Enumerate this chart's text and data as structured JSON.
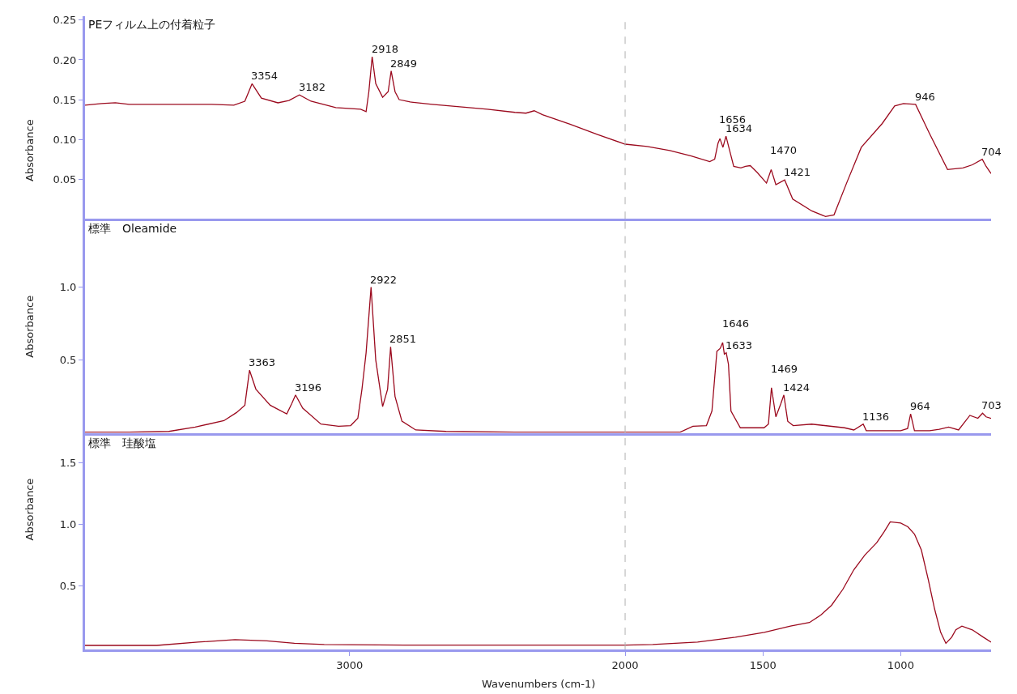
{
  "chart_data": [
    {
      "type": "line",
      "title": "PEフィルム上の付着粒子",
      "ylabel": "Absorbance",
      "xlim": [
        3960,
        672
      ],
      "ylim": [
        0.0,
        0.255
      ],
      "yticks": [
        0.05,
        {
          "value": 0.1,
          "label": "0.10"
        },
        0.15,
        {
          "value": 0.2,
          "label": "0.20"
        },
        0.25
      ],
      "tick_labels": "y",
      "ref_lines": [
        {
          "axis": "x",
          "value": 2000,
          "color": "#b0b0b0",
          "line_style": "dashed"
        }
      ],
      "series": [
        {
          "color": "#9b0a1e",
          "x": [
            3960,
            3900,
            3850,
            3800,
            3700,
            3600,
            3500,
            3420,
            3380,
            3354,
            3320,
            3260,
            3220,
            3182,
            3140,
            3050,
            2960,
            2940,
            2930,
            2918,
            2905,
            2880,
            2860,
            2849,
            2835,
            2820,
            2780,
            2700,
            2600,
            2500,
            2400,
            2360,
            2330,
            2300,
            2200,
            2100,
            2000,
            1920,
            1838,
            1760,
            1693,
            1675,
            1663,
            1656,
            1645,
            1634,
            1620,
            1606,
            1580,
            1563,
            1546,
            1520,
            1487,
            1470,
            1453,
            1421,
            1392,
            1323,
            1273,
            1242,
            1194,
            1143,
            1067,
            1022,
            990,
            946,
            895,
            830,
            774,
            740,
            704,
            690,
            672
          ],
          "values": [
            0.143,
            0.145,
            0.146,
            0.144,
            0.144,
            0.144,
            0.144,
            0.143,
            0.148,
            0.17,
            0.152,
            0.146,
            0.149,
            0.156,
            0.148,
            0.14,
            0.138,
            0.135,
            0.16,
            0.204,
            0.17,
            0.153,
            0.16,
            0.186,
            0.16,
            0.15,
            0.147,
            0.144,
            0.141,
            0.138,
            0.134,
            0.133,
            0.136,
            0.131,
            0.119,
            0.106,
            0.094,
            0.091,
            0.086,
            0.079,
            0.072,
            0.075,
            0.095,
            0.101,
            0.09,
            0.104,
            0.085,
            0.066,
            0.064,
            0.066,
            0.067,
            0.058,
            0.045,
            0.062,
            0.043,
            0.049,
            0.025,
            0.01,
            0.003,
            0.005,
            0.047,
            0.09,
            0.12,
            0.142,
            0.145,
            0.144,
            0.107,
            0.062,
            0.064,
            0.068,
            0.075,
            0.066,
            0.057
          ]
        }
      ],
      "annotations": [
        {
          "text": "3354",
          "x": 3354,
          "y": 0.17
        },
        {
          "text": "3182",
          "x": 3182,
          "y": 0.156
        },
        {
          "text": "2918",
          "x": 2918,
          "y": 0.204
        },
        {
          "text": "2849",
          "x": 2849,
          "y": 0.186
        },
        {
          "text": "1656",
          "x": 1656,
          "y": 0.101
        },
        {
          "text": "1634",
          "x": 1634,
          "y": 0.104
        },
        {
          "text": "1470",
          "x": 1470,
          "y": 0.062
        },
        {
          "text": "1421",
          "x": 1421,
          "y": 0.049
        },
        {
          "text": "946",
          "x": 946,
          "y": 0.144
        },
        {
          "text": "704",
          "x": 704,
          "y": 0.075
        }
      ]
    },
    {
      "type": "line",
      "title": "標準　Oleamide",
      "ylabel": "Absorbance",
      "xlim": [
        3960,
        672
      ],
      "ylim": [
        0.0,
        1.46
      ],
      "yticks": [
        0.5,
        {
          "value": 1.0,
          "label": "1.0"
        }
      ],
      "tick_labels": "y",
      "ref_lines": [
        {
          "axis": "x",
          "value": 2000,
          "color": "#b0b0b0",
          "line_style": "dashed"
        }
      ],
      "series": [
        {
          "color": "#9b0a1e",
          "x": [
            3960,
            3800,
            3656,
            3560,
            3456,
            3410,
            3380,
            3363,
            3340,
            3288,
            3228,
            3210,
            3196,
            3170,
            3104,
            3040,
            2996,
            2970,
            2955,
            2940,
            2922,
            2905,
            2880,
            2862,
            2851,
            2835,
            2810,
            2760,
            2650,
            2400,
            2000,
            1800,
            1754,
            1705,
            1685,
            1667,
            1655,
            1646,
            1640,
            1633,
            1625,
            1616,
            1582,
            1496,
            1480,
            1469,
            1453,
            1435,
            1424,
            1410,
            1390,
            1323,
            1204,
            1170,
            1136,
            1125,
            1000,
            975,
            964,
            950,
            895,
            860,
            826,
            790,
            749,
            720,
            703,
            690,
            672
          ],
          "values": [
            0.005,
            0.005,
            0.01,
            0.04,
            0.084,
            0.14,
            0.19,
            0.43,
            0.3,
            0.19,
            0.13,
            0.2,
            0.26,
            0.17,
            0.06,
            0.045,
            0.05,
            0.1,
            0.3,
            0.55,
            1.0,
            0.5,
            0.18,
            0.3,
            0.59,
            0.25,
            0.08,
            0.02,
            0.01,
            0.005,
            0.005,
            0.005,
            0.045,
            0.05,
            0.15,
            0.56,
            0.58,
            0.62,
            0.54,
            0.55,
            0.47,
            0.15,
            0.035,
            0.035,
            0.06,
            0.31,
            0.11,
            0.2,
            0.26,
            0.08,
            0.05,
            0.06,
            0.035,
            0.02,
            0.06,
            0.015,
            0.015,
            0.03,
            0.13,
            0.015,
            0.015,
            0.025,
            0.04,
            0.02,
            0.12,
            0.1,
            0.135,
            0.11,
            0.1
          ]
        }
      ],
      "annotations": [
        {
          "text": "3363",
          "x": 3363,
          "y": 0.43
        },
        {
          "text": "3196",
          "x": 3196,
          "y": 0.26
        },
        {
          "text": "2922",
          "x": 2922,
          "y": 1.0
        },
        {
          "text": "2851",
          "x": 2851,
          "y": 0.59
        },
        {
          "text": "1646",
          "x": 1646,
          "y": 0.62
        },
        {
          "text": "1633",
          "x": 1633,
          "y": 0.55
        },
        {
          "text": "1469",
          "x": 1469,
          "y": 0.31
        },
        {
          "text": "1424",
          "x": 1424,
          "y": 0.26
        },
        {
          "text": "1136",
          "x": 1136,
          "y": 0.06
        },
        {
          "text": "964",
          "x": 964,
          "y": 0.13
        },
        {
          "text": "703",
          "x": 703,
          "y": 0.135
        }
      ]
    },
    {
      "type": "line",
      "title": "標準　珪酸塩",
      "ylabel": "Absorbance",
      "xlabel": "Wavenumbers (cm-1)",
      "xlim": [
        3960,
        672
      ],
      "ylim": [
        -0.02,
        1.73
      ],
      "xticks": [
        3000,
        2000,
        1500,
        1000
      ],
      "yticks": [
        0.5,
        {
          "value": 1.0,
          "label": "1.0"
        },
        1.5
      ],
      "ref_lines": [
        {
          "axis": "x",
          "value": 2000,
          "color": "#b0b0b0",
          "line_style": "dashed"
        }
      ],
      "series": [
        {
          "color": "#9b0a1e",
          "x": [
            3960,
            3700,
            3550,
            3416,
            3300,
            3200,
            3092,
            2800,
            2400,
            2000,
            1900,
            1737,
            1600,
            1495,
            1400,
            1331,
            1290,
            1251,
            1210,
            1170,
            1130,
            1087,
            1060,
            1038,
            1000,
            974,
            950,
            925,
            900,
            877,
            855,
            836,
            815,
            800,
            778,
            740,
            700,
            672
          ],
          "values": [
            0.013,
            0.013,
            0.04,
            0.06,
            0.05,
            0.03,
            0.02,
            0.015,
            0.015,
            0.015,
            0.02,
            0.04,
            0.08,
            0.12,
            0.17,
            0.2,
            0.26,
            0.34,
            0.47,
            0.63,
            0.75,
            0.85,
            0.94,
            1.02,
            1.01,
            0.98,
            0.92,
            0.79,
            0.55,
            0.31,
            0.12,
            0.03,
            0.08,
            0.14,
            0.17,
            0.14,
            0.08,
            0.04
          ]
        }
      ]
    }
  ]
}
